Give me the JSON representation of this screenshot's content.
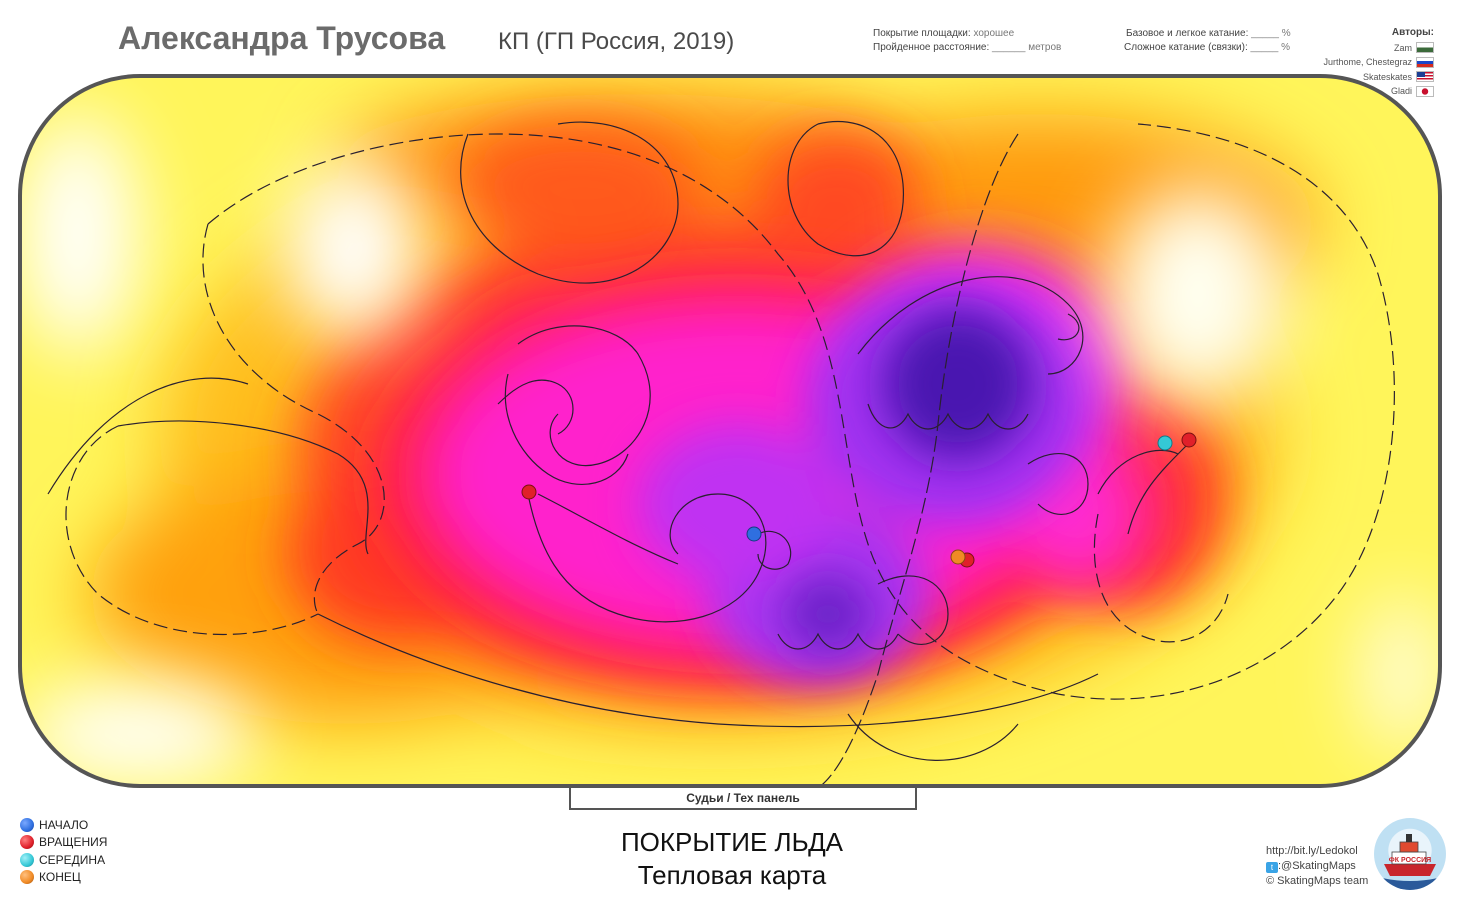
{
  "header": {
    "skater_name": "Александра Трусова",
    "program": "КП  (ГП Россия, 2019)"
  },
  "stats": {
    "coverage_label": "Покрытие площадки:",
    "coverage_value": "хорошее",
    "distance_label": "Пройденное расстояние:",
    "distance_value": "______ метров",
    "basic_label": "Базовое и легкое катание:",
    "basic_value": "_____ %",
    "complex_label": "Сложное катание (связки):",
    "complex_value": "_____ %"
  },
  "authors": {
    "header": "Авторы:",
    "items": [
      {
        "name": "Zam",
        "flag": "ru-flag"
      },
      {
        "name": "Jurthome, Chestegraz",
        "flag": "ru-flag"
      },
      {
        "name": "Skateskates",
        "flag": "us-flag"
      },
      {
        "name": "Gladi",
        "flag": "jp-flag"
      }
    ]
  },
  "rink": {
    "judges_panel": "Судьи / Тех панель",
    "heat_colors": [
      "#ffff66",
      "#ffcc00",
      "#ff6a00",
      "#ff2a3c",
      "#ff1fc8",
      "#c233f5",
      "#5a1ab8"
    ],
    "markers": [
      {
        "type": "start",
        "color": "#2f6fe0"
      },
      {
        "type": "spin",
        "color": "#e0202a"
      },
      {
        "type": "spin",
        "color": "#e0202a"
      },
      {
        "type": "spin",
        "color": "#e0202a"
      },
      {
        "type": "middle",
        "color": "#34c8d6"
      },
      {
        "type": "end",
        "color": "#f08a24"
      }
    ]
  },
  "legend": [
    {
      "label": "НАЧАЛО",
      "color": "#2f6fe0"
    },
    {
      "label": "ВРАЩЕНИЯ",
      "color": "#e0202a"
    },
    {
      "label": "СЕРЕДИНА",
      "color": "#34c8d6"
    },
    {
      "label": "КОНЕЦ",
      "color": "#f08a24"
    }
  ],
  "caption": {
    "line1": "ПОКРЫТИЕ ЛЬДА",
    "line2": "Тепловая карта"
  },
  "credits": {
    "link": "http://bit.ly/Ledokol",
    "twitter": ":@SkatingMaps",
    "team": "© SkatingMaps team"
  },
  "logo": {
    "text": "ФК РОССИЯ"
  }
}
